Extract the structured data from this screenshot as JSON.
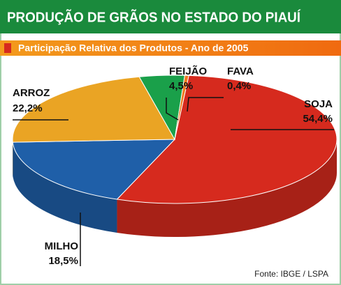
{
  "chart_data": {
    "type": "pie",
    "title": "PRODUÇÃO DE GRÃOS NO ESTADO DO PIAUÍ",
    "subtitle": "Participação Relativa dos Produtos - Ano de 2005",
    "categories": [
      "SOJA",
      "MILHO",
      "ARROZ",
      "FEIJÃO",
      "FAVA"
    ],
    "values": [
      54.4,
      18.5,
      22.2,
      4.5,
      0.4
    ],
    "value_labels": [
      "54,4%",
      "18,5%",
      "22,2%",
      "4,5%",
      "0,4%"
    ],
    "colors": [
      "#d62a1e",
      "#1f5fa8",
      "#eaa424",
      "#1aa04a",
      "#f07a20"
    ],
    "source": "Fonte: IBGE / LSPA"
  }
}
